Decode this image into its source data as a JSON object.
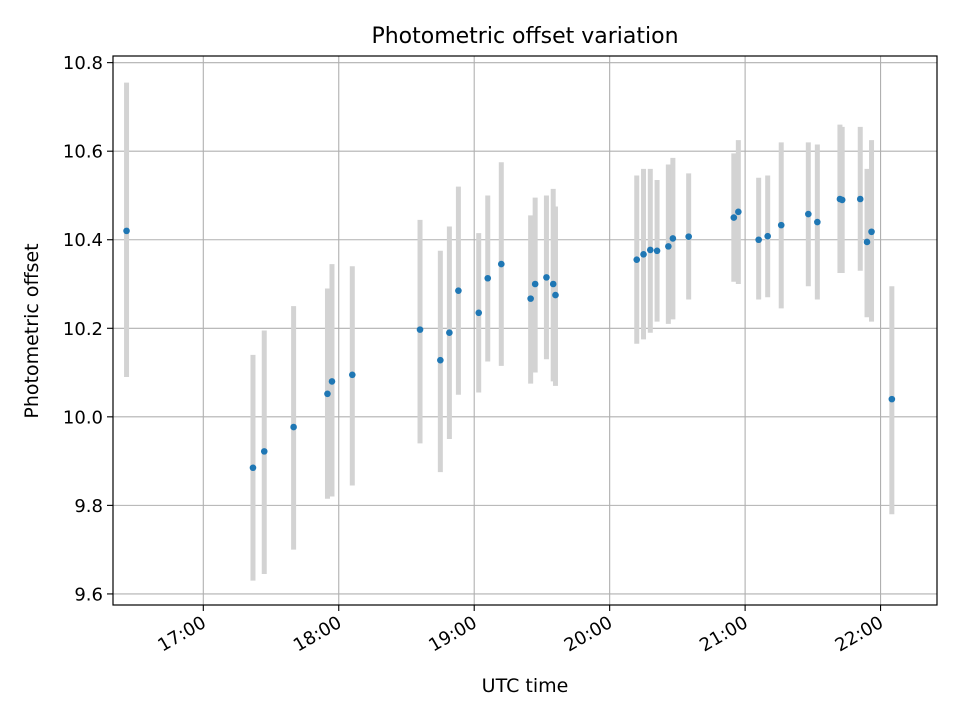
{
  "chart_data": {
    "type": "scatter",
    "title": "Photometric offset variation",
    "xlabel": "UTC time",
    "ylabel": "Photometric offset",
    "xlim": [
      "16:20",
      "22:25"
    ],
    "ylim": [
      9.575,
      10.815
    ],
    "x_ticks": [
      "17:00",
      "18:00",
      "19:00",
      "20:00",
      "21:00",
      "22:00"
    ],
    "y_ticks": [
      "9.6",
      "9.8",
      "10.0",
      "10.2",
      "10.4",
      "10.6",
      "10.8"
    ],
    "grid": true,
    "marker_color": "#1f77b4",
    "errorbar_color": "#d3d3d3",
    "series": [
      {
        "points": [
          {
            "x": "16:26",
            "y": 10.42,
            "low": 10.09,
            "high": 10.755
          },
          {
            "x": "17:22",
            "y": 9.885,
            "low": 9.63,
            "high": 10.14
          },
          {
            "x": "17:27",
            "y": 9.922,
            "low": 9.645,
            "high": 10.195
          },
          {
            "x": "17:40",
            "y": 9.977,
            "low": 9.7,
            "high": 10.25
          },
          {
            "x": "17:55",
            "y": 10.052,
            "low": 9.815,
            "high": 10.29
          },
          {
            "x": "17:57",
            "y": 10.08,
            "low": 9.82,
            "high": 10.345
          },
          {
            "x": "18:06",
            "y": 10.095,
            "low": 9.845,
            "high": 10.34
          },
          {
            "x": "18:36",
            "y": 10.197,
            "low": 9.94,
            "high": 10.445
          },
          {
            "x": "18:45",
            "y": 10.128,
            "low": 9.875,
            "high": 10.375
          },
          {
            "x": "18:49",
            "y": 10.19,
            "low": 9.95,
            "high": 10.43
          },
          {
            "x": "18:53",
            "y": 10.285,
            "low": 10.05,
            "high": 10.52
          },
          {
            "x": "19:02",
            "y": 10.235,
            "low": 10.055,
            "high": 10.415
          },
          {
            "x": "19:06",
            "y": 10.313,
            "low": 10.125,
            "high": 10.5
          },
          {
            "x": "19:12",
            "y": 10.345,
            "low": 10.115,
            "high": 10.575
          },
          {
            "x": "19:25",
            "y": 10.267,
            "low": 10.075,
            "high": 10.455
          },
          {
            "x": "19:27",
            "y": 10.3,
            "low": 10.1,
            "high": 10.495
          },
          {
            "x": "19:32",
            "y": 10.315,
            "low": 10.13,
            "high": 10.5
          },
          {
            "x": "19:35",
            "y": 10.3,
            "low": 10.08,
            "high": 10.515
          },
          {
            "x": "19:36",
            "y": 10.275,
            "low": 10.07,
            "high": 10.475
          },
          {
            "x": "20:12",
            "y": 10.355,
            "low": 10.165,
            "high": 10.545
          },
          {
            "x": "20:15",
            "y": 10.367,
            "low": 10.175,
            "high": 10.56
          },
          {
            "x": "20:18",
            "y": 10.377,
            "low": 10.19,
            "high": 10.56
          },
          {
            "x": "20:21",
            "y": 10.375,
            "low": 10.215,
            "high": 10.535
          },
          {
            "x": "20:26",
            "y": 10.385,
            "low": 10.21,
            "high": 10.57
          },
          {
            "x": "20:28",
            "y": 10.403,
            "low": 10.22,
            "high": 10.585
          },
          {
            "x": "20:35",
            "y": 10.407,
            "low": 10.265,
            "high": 10.55
          },
          {
            "x": "20:55",
            "y": 10.45,
            "low": 10.305,
            "high": 10.595
          },
          {
            "x": "20:57",
            "y": 10.463,
            "low": 10.3,
            "high": 10.625
          },
          {
            "x": "21:06",
            "y": 10.4,
            "low": 10.265,
            "high": 10.54
          },
          {
            "x": "21:10",
            "y": 10.408,
            "low": 10.27,
            "high": 10.545
          },
          {
            "x": "21:16",
            "y": 10.433,
            "low": 10.245,
            "high": 10.62
          },
          {
            "x": "21:28",
            "y": 10.458,
            "low": 10.295,
            "high": 10.62
          },
          {
            "x": "21:32",
            "y": 10.44,
            "low": 10.265,
            "high": 10.615
          },
          {
            "x": "21:42",
            "y": 10.492,
            "low": 10.325,
            "high": 10.66
          },
          {
            "x": "21:43",
            "y": 10.49,
            "low": 10.325,
            "high": 10.655
          },
          {
            "x": "21:51",
            "y": 10.492,
            "low": 10.33,
            "high": 10.655
          },
          {
            "x": "21:54",
            "y": 10.395,
            "low": 10.225,
            "high": 10.56
          },
          {
            "x": "21:56",
            "y": 10.418,
            "low": 10.215,
            "high": 10.625
          },
          {
            "x": "22:05",
            "y": 10.04,
            "low": 9.78,
            "high": 10.295
          }
        ]
      }
    ]
  }
}
